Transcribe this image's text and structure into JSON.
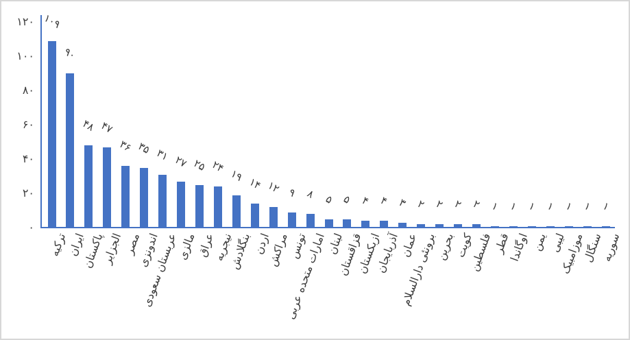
{
  "chart_data": {
    "type": "bar",
    "title": "",
    "xlabel": "",
    "ylabel": "",
    "ylim": [
      0,
      120
    ],
    "grid": false,
    "legend": false,
    "bar_color": "#4472C4",
    "axis_color": "#4472C4",
    "text_color": "#3b3b3b",
    "frame_color": "#d7d7d7",
    "y_ticks": [
      {
        "value": 0,
        "label": "۰"
      },
      {
        "value": 20,
        "label": "۲۰"
      },
      {
        "value": 40,
        "label": "۴۰"
      },
      {
        "value": 60,
        "label": "۶۰"
      },
      {
        "value": 80,
        "label": "۸۰"
      },
      {
        "value": 100,
        "label": "۱۰۰"
      },
      {
        "value": 120,
        "label": "۱۲۰"
      }
    ],
    "categories": [
      "ترکیه",
      "ایران",
      "پاکستان",
      "الجزایر",
      "مصر",
      "اندونزی",
      "عربستان سعودی",
      "مالزی",
      "عراق",
      "نیجریه",
      "بنگلادش",
      "اردن",
      "مراکش",
      "تونس",
      "امارات متحده عربی",
      "لبنان",
      "قزاقستان",
      "ازبکستان",
      "آذربایجان",
      "عمان",
      "برونئی دارالسلام",
      "بحرین",
      "کویت",
      "فلسطین",
      "قطر",
      "اوگاندا",
      "یمن",
      "لیبی",
      "موزامبیک",
      "سنگال",
      "سوریه"
    ],
    "values": [
      109,
      90,
      48,
      47,
      36,
      35,
      31,
      27,
      25,
      24,
      19,
      14,
      12,
      9,
      8,
      5,
      5,
      4,
      4,
      3,
      2,
      2,
      2,
      2,
      1,
      1,
      1,
      1,
      1,
      1,
      1
    ],
    "value_labels": [
      "۱۰۹",
      "۹۰",
      "۴۸",
      "۴۷",
      "۳۶",
      "۳۵",
      "۳۱",
      "۲۷",
      "۲۵",
      "۲۴",
      "۱۹",
      "۱۴",
      "۱۲",
      "۹",
      "۸",
      "۵",
      "۵",
      "۴",
      "۴",
      "۳",
      "۲",
      "۲",
      "۲",
      "۲",
      "۱",
      "۱",
      "۱",
      "۱",
      "۱",
      "۱",
      "۱"
    ]
  }
}
